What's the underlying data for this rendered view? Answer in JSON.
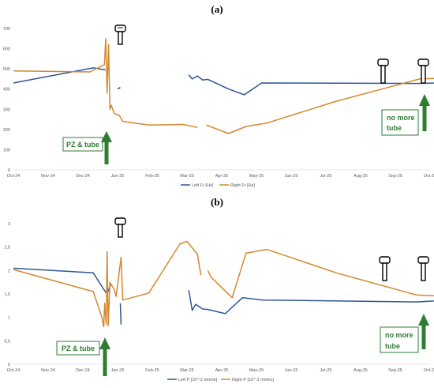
{
  "chart_data": [
    {
      "type": "line",
      "title": "(a)",
      "ylabel": "",
      "xlabel": "",
      "ylim": [
        0,
        700
      ],
      "yticks": [
        0,
        100,
        200,
        300,
        400,
        500,
        600,
        700
      ],
      "xticks": [
        "Oct-24",
        "Nov-24",
        "Dec-24",
        "Jan-25",
        "Feb-25",
        "Mar-25",
        "Apr-25",
        "May-25",
        "Jun-25",
        "Jul-25",
        "Aug-25",
        "Sep-25",
        "Oct-25"
      ],
      "grid": false,
      "legend_position": "bottom",
      "series": [
        {
          "name": "Left Fr [Hz]",
          "color": "#2f5597",
          "segments": [
            [
              [
                0,
                430
              ],
              [
                2.3,
                505
              ],
              [
                2.65,
                495
              ]
            ],
            [
              [
                3.0,
                400
              ],
              [
                3.08,
                408
              ]
            ],
            [
              [
                5.05,
                470
              ],
              [
                5.15,
                450
              ],
              [
                5.3,
                465
              ],
              [
                5.45,
                445
              ],
              [
                5.6,
                448
              ],
              [
                6.2,
                400
              ],
              [
                6.65,
                372
              ],
              [
                7.15,
                430
              ],
              [
                11.6,
                428
              ],
              [
                12.8,
                432
              ]
            ]
          ]
        },
        {
          "name": "Right Fr [Hz]",
          "color": "#d4882e",
          "segments": [
            [
              [
                0,
                490
              ],
              [
                2.2,
                485
              ],
              [
                2.62,
                520
              ],
              [
                2.66,
                650
              ],
              [
                2.7,
                380
              ],
              [
                2.74,
                620
              ],
              [
                2.78,
                300
              ],
              [
                2.82,
                320
              ],
              [
                2.9,
                280
              ],
              [
                3.05,
                270
              ],
              [
                3.15,
                240
              ],
              [
                3.9,
                222
              ],
              [
                4.9,
                225
              ],
              [
                5.3,
                210
              ]
            ],
            [
              [
                5.55,
                222
              ],
              [
                6.2,
                180
              ],
              [
                6.7,
                215
              ],
              [
                7.3,
                232
              ],
              [
                9.3,
                340
              ],
              [
                11.7,
                450
              ],
              [
                12.8,
                457
              ]
            ]
          ]
        }
      ],
      "annotations": [
        {
          "text": "PZ & tube",
          "at_x": 2.95
        },
        {
          "text": "no more tube",
          "at_x": 12.8
        }
      ]
    },
    {
      "type": "line",
      "title": "(b)",
      "ylabel": "",
      "xlabel": "",
      "ylim": [
        0,
        3
      ],
      "yticks": [
        "0",
        "0,5",
        "1",
        "1,5",
        "2",
        "2,5",
        "3"
      ],
      "xticks": [
        "Oct-24",
        "Nov-24",
        "Dec-24",
        "Jan-25",
        "Feb-25",
        "Mar-25",
        "Apr-25",
        "May-25",
        "Jun-25",
        "Jul-25",
        "Aug-25",
        "Sep-25",
        "Oct-25"
      ],
      "grid": false,
      "legend_position": "bottom",
      "series": [
        {
          "name": "Left P [10^-2 mmho]",
          "color": "#2f5597",
          "segments": [
            [
              [
                0,
                2.05
              ],
              [
                2.3,
                1.95
              ],
              [
                2.6,
                1.6
              ],
              [
                2.7,
                1.5
              ],
              [
                2.8,
                1.7
              ]
            ],
            [
              [
                3.08,
                1.3
              ],
              [
                3.1,
                0.85
              ]
            ],
            [
              [
                5.05,
                1.58
              ],
              [
                5.15,
                1.15
              ],
              [
                5.25,
                1.28
              ],
              [
                5.45,
                1.18
              ],
              [
                5.6,
                1.17
              ],
              [
                6.1,
                1.08
              ],
              [
                6.6,
                1.42
              ],
              [
                7.2,
                1.37
              ],
              [
                11.6,
                1.33
              ],
              [
                12.8,
                1.38
              ]
            ]
          ]
        },
        {
          "name": "Right P [10^-2 mmho]",
          "color": "#d4882e",
          "segments": [
            [
              [
                0,
                2.02
              ],
              [
                2.3,
                1.55
              ],
              [
                2.55,
                1.0
              ],
              [
                2.6,
                0.8
              ],
              [
                2.63,
                1.3
              ],
              [
                2.67,
                0.85
              ],
              [
                2.7,
                2.4
              ],
              [
                2.73,
                0.82
              ],
              [
                2.78,
                1.75
              ],
              [
                2.9,
                1.6
              ],
              [
                2.96,
                1.45
              ],
              [
                3.1,
                2.28
              ],
              [
                3.15,
                1.37
              ],
              [
                3.9,
                1.52
              ],
              [
                4.8,
                2.57
              ],
              [
                5.0,
                2.62
              ],
              [
                5.3,
                2.35
              ],
              [
                5.4,
                1.9
              ]
            ],
            [
              [
                5.6,
                2.0
              ],
              [
                5.7,
                1.85
              ],
              [
                6.3,
                1.42
              ],
              [
                6.7,
                2.37
              ],
              [
                7.3,
                2.45
              ],
              [
                9.3,
                1.95
              ],
              [
                11.6,
                1.48
              ],
              [
                12.8,
                1.44
              ]
            ]
          ]
        }
      ],
      "annotations": [
        {
          "text": "PZ & tube",
          "at_x": 2.95
        },
        {
          "text": "no more tube",
          "at_x": 12.8
        }
      ]
    }
  ],
  "colors": {
    "left_series": "#2f5597",
    "right_series": "#d4882e",
    "annotation": "#2e7d32",
    "axis_text": "#595959"
  }
}
